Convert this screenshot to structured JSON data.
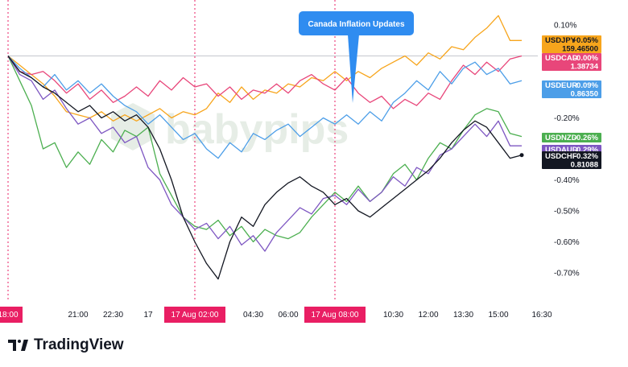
{
  "brand": {
    "name": "TradingView",
    "logo_icon": "tradingview-logo-icon"
  },
  "watermark": {
    "text": "babypips",
    "icon": "babypips-hexagon-icon"
  },
  "callout": {
    "text": "Canada Inflation Updates",
    "color": "#2f8cf0"
  },
  "colors": {
    "event_marker": "#e91e63",
    "grid_line": "#b2b5be"
  },
  "chart_data": {
    "type": "line",
    "x": [
      "18:00",
      "18:30",
      "19:00",
      "19:30",
      "20:00",
      "20:30",
      "21:00",
      "21:30",
      "22:00",
      "22:30",
      "23:00",
      "23:30",
      "00:00",
      "00:30",
      "01:00",
      "01:30",
      "02:00",
      "02:30",
      "03:00",
      "03:30",
      "04:00",
      "04:30",
      "05:00",
      "05:30",
      "06:00",
      "06:30",
      "07:00",
      "07:30",
      "08:00",
      "08:30",
      "09:00",
      "09:30",
      "10:00",
      "10:30",
      "11:00",
      "11:30",
      "12:00",
      "12:30",
      "13:00",
      "13:30",
      "14:00",
      "14:30",
      "15:00",
      "15:30",
      "16:00"
    ],
    "ylim": [
      -0.8,
      0.15
    ],
    "y_ticks": [
      0.1,
      -0.2,
      -0.3,
      -0.4,
      -0.5,
      -0.6,
      -0.7
    ],
    "y_tick_labels": [
      "0.10%",
      "-0.20%",
      "-0.30%",
      "-0.40%",
      "-0.50%",
      "-0.60%",
      "-0.70%"
    ],
    "x_tick_labels": [
      {
        "x": "18:00",
        "label": "18:00",
        "highlight": true
      },
      {
        "x": "21:00",
        "label": "21:00",
        "highlight": false
      },
      {
        "x": "22:30",
        "label": "22:30",
        "highlight": false
      },
      {
        "x": "00:00",
        "label": "17",
        "highlight": false
      },
      {
        "x": "02:00",
        "label": "17 Aug   02:00",
        "highlight": true
      },
      {
        "x": "04:30",
        "label": "04:30",
        "highlight": false
      },
      {
        "x": "06:00",
        "label": "06:00",
        "highlight": false
      },
      {
        "x": "08:00",
        "label": "17 Aug   08:00",
        "highlight": true
      },
      {
        "x": "10:30",
        "label": "10:30",
        "highlight": false
      },
      {
        "x": "12:00",
        "label": "12:00",
        "highlight": false
      },
      {
        "x": "13:30",
        "label": "13:30",
        "highlight": false
      },
      {
        "x": "15:00",
        "label": "15:00",
        "highlight": false
      },
      {
        "x": "16:30",
        "label": "16:30",
        "highlight": false
      }
    ],
    "event_lines": [
      "18:00",
      "02:00",
      "08:00"
    ],
    "grid": false,
    "legend": "right-price-tags",
    "series": [
      {
        "name": "USDJPY",
        "color": "#f7a51c",
        "tag_value": "+0.05%",
        "tag_price": "159.46500",
        "values": [
          0.0,
          -0.03,
          -0.06,
          -0.09,
          -0.13,
          -0.18,
          -0.19,
          -0.2,
          -0.18,
          -0.21,
          -0.19,
          -0.21,
          -0.19,
          -0.17,
          -0.2,
          -0.18,
          -0.19,
          -0.17,
          -0.12,
          -0.15,
          -0.1,
          -0.14,
          -0.11,
          -0.12,
          -0.09,
          -0.1,
          -0.07,
          -0.08,
          -0.05,
          -0.08,
          -0.05,
          -0.07,
          -0.04,
          -0.02,
          0.0,
          -0.03,
          0.01,
          -0.01,
          0.03,
          0.02,
          0.06,
          0.09,
          0.13,
          0.05,
          0.05
        ]
      },
      {
        "name": "USDCAD",
        "color": "#e8467a",
        "tag_value": "-0.00%",
        "tag_price": "1.38734",
        "values": [
          0.0,
          -0.05,
          -0.06,
          -0.05,
          -0.08,
          -0.12,
          -0.09,
          -0.14,
          -0.11,
          -0.15,
          -0.13,
          -0.1,
          -0.13,
          -0.08,
          -0.11,
          -0.07,
          -0.1,
          -0.09,
          -0.13,
          -0.1,
          -0.14,
          -0.11,
          -0.12,
          -0.09,
          -0.12,
          -0.08,
          -0.06,
          -0.09,
          -0.11,
          -0.07,
          -0.12,
          -0.15,
          -0.13,
          -0.17,
          -0.14,
          -0.16,
          -0.12,
          -0.14,
          -0.08,
          -0.03,
          -0.06,
          -0.02,
          -0.05,
          -0.01,
          0.0
        ]
      },
      {
        "name": "USDEUR",
        "color": "#4c9ee8",
        "tag_value": "-0.09%",
        "tag_price": "0.86350",
        "values": [
          0.0,
          -0.04,
          -0.07,
          -0.1,
          -0.06,
          -0.11,
          -0.08,
          -0.12,
          -0.09,
          -0.13,
          -0.16,
          -0.18,
          -0.22,
          -0.19,
          -0.23,
          -0.27,
          -0.25,
          -0.3,
          -0.33,
          -0.28,
          -0.31,
          -0.25,
          -0.27,
          -0.24,
          -0.22,
          -0.26,
          -0.23,
          -0.2,
          -0.22,
          -0.19,
          -0.22,
          -0.18,
          -0.21,
          -0.15,
          -0.12,
          -0.08,
          -0.11,
          -0.05,
          -0.09,
          -0.04,
          -0.02,
          -0.06,
          -0.04,
          -0.09,
          -0.08
        ]
      },
      {
        "name": "USDNZD",
        "color": "#4caf50",
        "tag_value": "-0.26%",
        "tag_price": "",
        "values": [
          0.0,
          -0.08,
          -0.16,
          -0.3,
          -0.28,
          -0.36,
          -0.31,
          -0.35,
          -0.27,
          -0.31,
          -0.24,
          -0.26,
          -0.23,
          -0.38,
          -0.45,
          -0.52,
          -0.55,
          -0.56,
          -0.53,
          -0.58,
          -0.55,
          -0.6,
          -0.56,
          -0.58,
          -0.59,
          -0.57,
          -0.52,
          -0.48,
          -0.44,
          -0.47,
          -0.42,
          -0.47,
          -0.44,
          -0.38,
          -0.35,
          -0.4,
          -0.33,
          -0.28,
          -0.3,
          -0.24,
          -0.19,
          -0.17,
          -0.18,
          -0.25,
          -0.26
        ]
      },
      {
        "name": "USDAUD",
        "color": "#7e57c2",
        "tag_value": "-0.29%",
        "tag_price": "",
        "values": [
          0.0,
          -0.06,
          -0.08,
          -0.14,
          -0.11,
          -0.17,
          -0.22,
          -0.2,
          -0.25,
          -0.23,
          -0.28,
          -0.26,
          -0.36,
          -0.4,
          -0.48,
          -0.52,
          -0.56,
          -0.54,
          -0.59,
          -0.55,
          -0.61,
          -0.58,
          -0.63,
          -0.57,
          -0.53,
          -0.49,
          -0.51,
          -0.46,
          -0.45,
          -0.48,
          -0.43,
          -0.47,
          -0.44,
          -0.39,
          -0.42,
          -0.36,
          -0.38,
          -0.32,
          -0.3,
          -0.26,
          -0.22,
          -0.26,
          -0.21,
          -0.29,
          -0.29
        ]
      },
      {
        "name": "USDCHF",
        "color": "#131722",
        "tag_value": "-0.32%",
        "tag_price": "0.81088",
        "values": [
          0.0,
          -0.05,
          -0.07,
          -0.1,
          -0.12,
          -0.15,
          -0.18,
          -0.16,
          -0.2,
          -0.18,
          -0.21,
          -0.19,
          -0.23,
          -0.3,
          -0.4,
          -0.52,
          -0.6,
          -0.67,
          -0.72,
          -0.6,
          -0.52,
          -0.55,
          -0.48,
          -0.44,
          -0.41,
          -0.39,
          -0.42,
          -0.44,
          -0.48,
          -0.46,
          -0.5,
          -0.52,
          -0.49,
          -0.46,
          -0.43,
          -0.4,
          -0.37,
          -0.33,
          -0.28,
          -0.24,
          -0.21,
          -0.23,
          -0.28,
          -0.33,
          -0.32
        ]
      }
    ]
  }
}
